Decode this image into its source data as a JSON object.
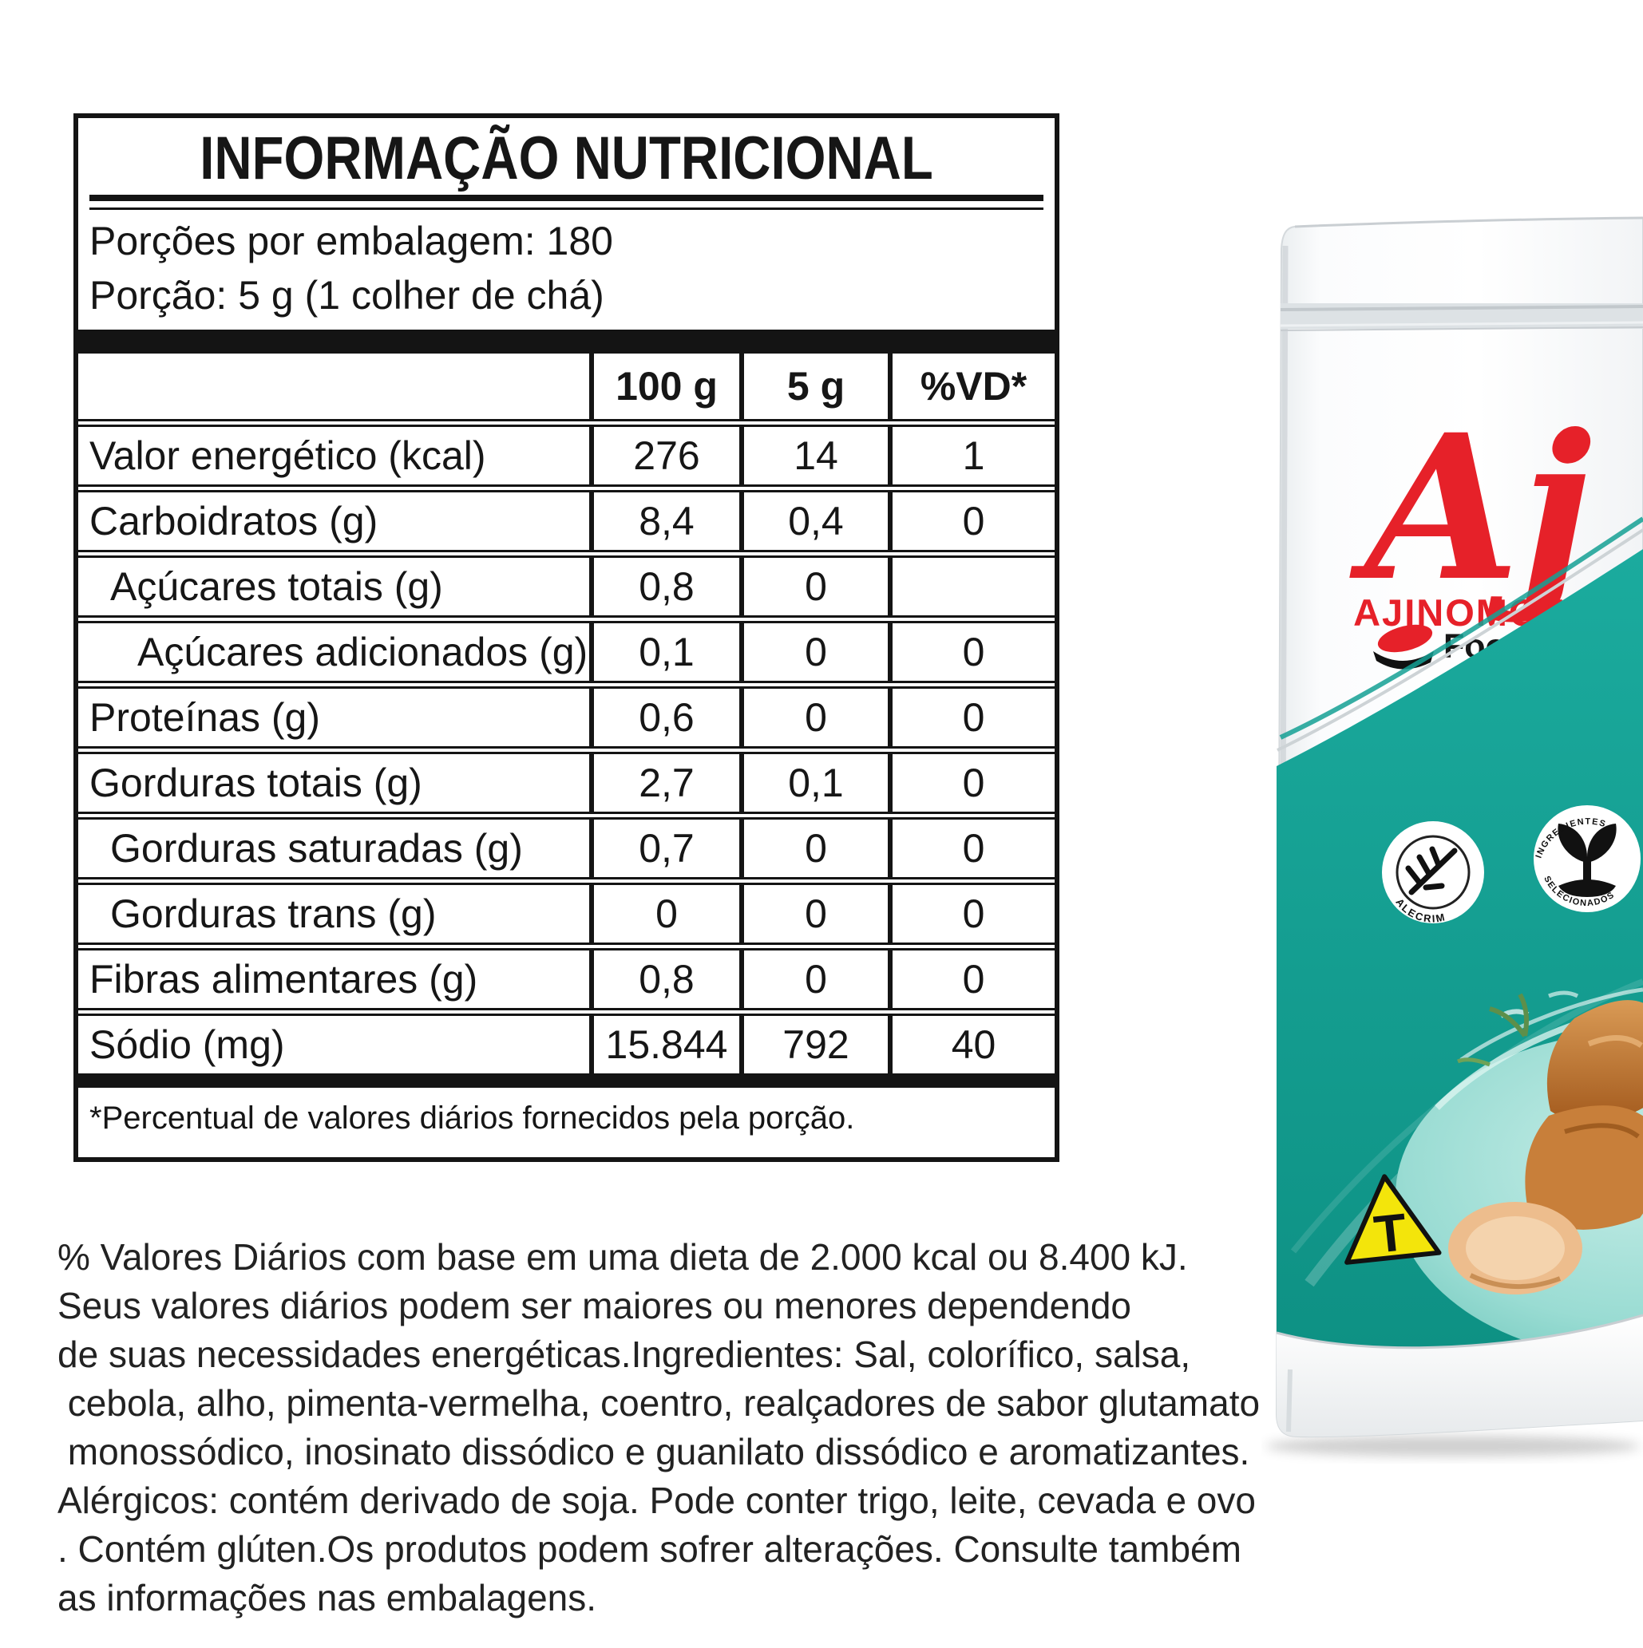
{
  "nutrition_table": {
    "title": "INFORMAÇÃO NUTRICIONAL",
    "servings_line1": "Porções por embalagem: 180",
    "servings_line2": "Porção: 5 g (1 colher de chá)",
    "columns": [
      "100 g",
      "5 g",
      "%VD*"
    ],
    "rows": [
      {
        "label": "Valor energético (kcal)",
        "v100g": "276",
        "v5g": "14",
        "vd": "1",
        "indent": 0
      },
      {
        "label": "Carboidratos (g)",
        "v100g": "8,4",
        "v5g": "0,4",
        "vd": "0",
        "indent": 0
      },
      {
        "label": "Açúcares totais (g)",
        "v100g": "0,8",
        "v5g": "0",
        "vd": "",
        "indent": 1
      },
      {
        "label": "Açúcares adicionados (g)",
        "v100g": "0,1",
        "v5g": "0",
        "vd": "0",
        "indent": 2
      },
      {
        "label": "Proteínas (g)",
        "v100g": "0,6",
        "v5g": "0",
        "vd": "0",
        "indent": 0
      },
      {
        "label": "Gorduras totais (g)",
        "v100g": "2,7",
        "v5g": "0,1",
        "vd": "0",
        "indent": 0
      },
      {
        "label": "Gorduras saturadas (g)",
        "v100g": "0,7",
        "v5g": "0",
        "vd": "0",
        "indent": 1
      },
      {
        "label": "Gorduras trans (g)",
        "v100g": "0",
        "v5g": "0",
        "vd": "0",
        "indent": 1
      },
      {
        "label": "Fibras alimentares (g)",
        "v100g": "0,8",
        "v5g": "0",
        "vd": "0",
        "indent": 0
      },
      {
        "label": "Sódio (mg)",
        "v100g": "15.844",
        "v5g": "792",
        "vd": "40",
        "indent": 0
      }
    ],
    "footnote": "*Percentual de valores diários fornecidos pela porção."
  },
  "info_text": {
    "lines": [
      "% Valores Diários com base em uma dieta de 2.000 kcal ou 8.400 kJ.",
      "Seus valores diários podem ser maiores ou menores dependendo",
      "de suas necessidades energéticas.Ingredientes: Sal, colorífico, salsa,",
      " cebola, alho, pimenta-vermelha, coentro, realçadores de sabor glutamato",
      " monossódico, inosinato dissódico e guanilato dissódico e aromatizantes.",
      "Alérgicos: contém derivado de soja. Pode conter trigo, leite, cevada e ovo",
      ". Contém glúten.Os produtos podem sofrer alterações. Consulte também",
      "as informações nas embalagens."
    ]
  },
  "package": {
    "brand_monogram": "Aj",
    "brand_name": "AJINOMOTO",
    "brand_reg": "®",
    "service_line": "Food Service",
    "badge_left_label": "ALECRIM",
    "badge_right_label_top": "INGREDIENTES",
    "badge_right_label_bottom": "SELECIONADOS",
    "transgenic_symbol": "T",
    "colors": {
      "teal": "#14a094",
      "teal_dark": "#0e8d81",
      "teal_light": "#8fd8cf",
      "brand_red": "#e62129",
      "warning_yellow": "#f3e50b"
    }
  }
}
